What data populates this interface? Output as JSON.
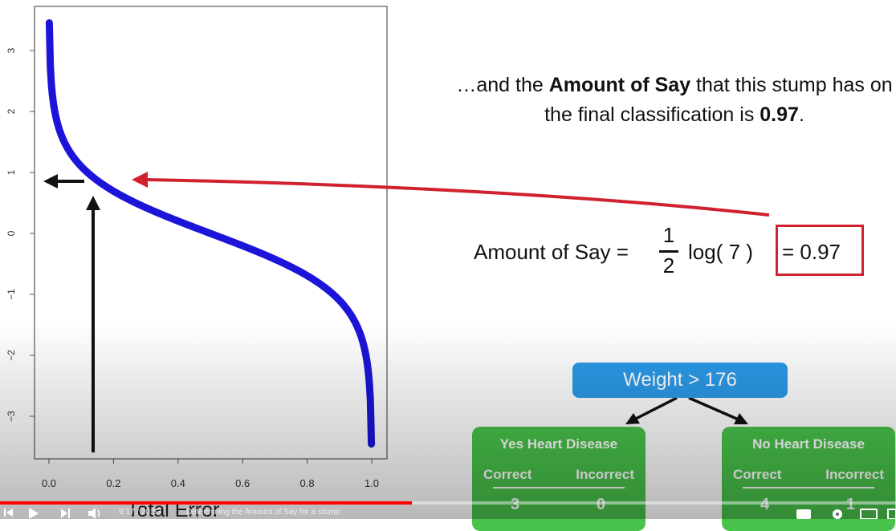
{
  "plot": {
    "y_ticks": [
      "3",
      "2",
      "1",
      "0",
      "−1",
      "−2",
      "−3"
    ],
    "x_ticks": [
      "0.0",
      "0.2",
      "0.4",
      "0.6",
      "0.8",
      "1.0"
    ],
    "xlabel": "Total Error",
    "curve_color": "#1c14d8",
    "reading_total_error": 0.14,
    "reading_amount_of_say": 0.9
  },
  "caption": {
    "before": "…and the ",
    "bold": "Amount of Say",
    "middle": " that this stump has on the final classification is ",
    "value": "0.97",
    "after": "."
  },
  "formula": {
    "label": "Amount of Say =",
    "numerator": "1",
    "denominator": "2",
    "log_text": "log( 7 )",
    "result": "= 0.97",
    "highlight_color": "#d0212f"
  },
  "stump": {
    "root_label": "Weight > 176",
    "left_leaf": {
      "title": "Yes Heart Disease",
      "col1": "Correct",
      "col2": "Incorrect",
      "val1": "3",
      "val2": "0"
    },
    "right_leaf": {
      "title": "No Heart Disease",
      "col1": "Correct",
      "col2": "Incorrect",
      "val1": "4",
      "val2": "1"
    }
  },
  "player": {
    "time": "9:17 / 20:53",
    "chapter": "Determining the Amount of Say for a stump",
    "progress": 0.46,
    "accent": "#ff0000"
  }
}
